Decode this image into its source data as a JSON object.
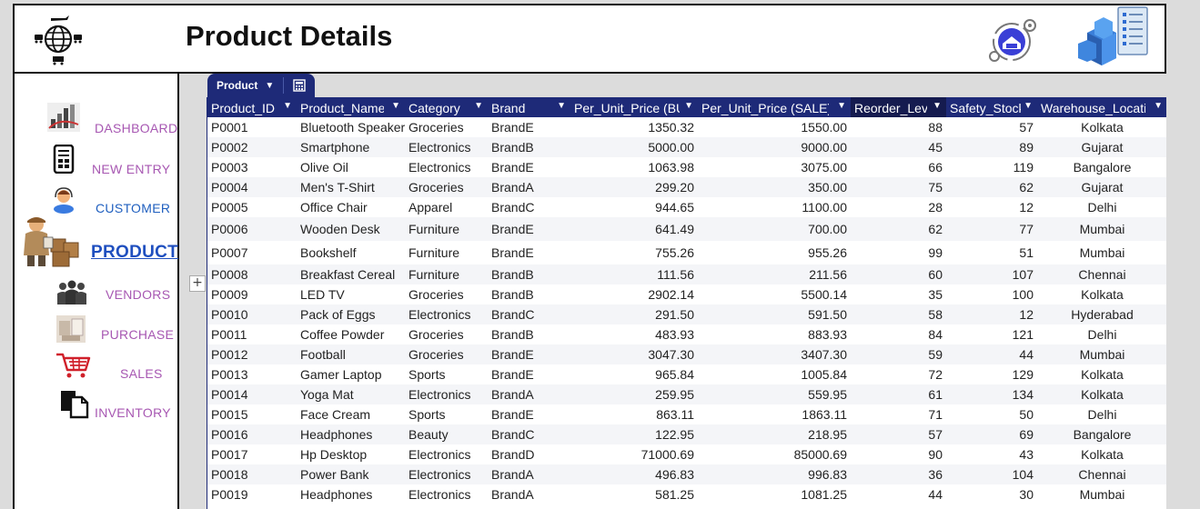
{
  "header": {
    "title": "Product Details"
  },
  "sidebar": {
    "items": [
      {
        "label": "DASHBOARD",
        "icon": "dashboard-icon"
      },
      {
        "label": "NEW ENTRY",
        "icon": "mobile-form-icon"
      },
      {
        "label": "CUSTOMER",
        "icon": "customer-icon"
      },
      {
        "label": "PRODUCT",
        "icon": "product-boxes-icon"
      },
      {
        "label": "VENDORS",
        "icon": "people-icon"
      },
      {
        "label": "PURCHASE",
        "icon": "purchase-icon"
      },
      {
        "label": "SALES",
        "icon": "shopping-cart-icon"
      },
      {
        "label": "INVENTORY",
        "icon": "inventory-docs-icon"
      }
    ]
  },
  "tabs": {
    "table_tab": "Product",
    "chevron": "⌄"
  },
  "table": {
    "columns": [
      "Product_ID",
      "Product_Name",
      "Category",
      "Brand",
      "Per_Unit_Price (BUY)",
      "Per_Unit_Price (SALE)",
      "Reorder_Level",
      "Safety_Stock",
      "Warehouse_Location"
    ],
    "rows": [
      [
        "P0001",
        "Bluetooth Speaker",
        "Groceries",
        "BrandE",
        "1350.32",
        "1550.00",
        "88",
        "57",
        "Kolkata"
      ],
      [
        "P0002",
        "Smartphone",
        "Electronics",
        "BrandB",
        "5000.00",
        "9000.00",
        "45",
        "89",
        "Gujarat"
      ],
      [
        "P0003",
        "Olive Oil",
        "Electronics",
        "BrandE",
        "1063.98",
        "3075.00",
        "66",
        "119",
        "Bangalore"
      ],
      [
        "P0004",
        "Men's T-Shirt",
        "Groceries",
        "BrandA",
        "299.20",
        "350.00",
        "75",
        "62",
        "Gujarat"
      ],
      [
        "P0005",
        "Office Chair",
        "Apparel",
        "BrandC",
        "944.65",
        "1100.00",
        "28",
        "12",
        "Delhi"
      ],
      [
        "P0006",
        "Wooden Desk",
        "Furniture",
        "BrandE",
        "641.49",
        "700.00",
        "62",
        "77",
        "Mumbai"
      ],
      [
        "P0007",
        "Bookshelf",
        "Furniture",
        "BrandE",
        "755.26",
        "955.26",
        "99",
        "51",
        "Mumbai"
      ],
      [
        "P0008",
        "Breakfast Cereal",
        "Furniture",
        "BrandB",
        "111.56",
        "211.56",
        "60",
        "107",
        "Chennai"
      ],
      [
        "P0009",
        "LED TV",
        "Groceries",
        "BrandB",
        "2902.14",
        "5500.14",
        "35",
        "100",
        "Kolkata"
      ],
      [
        "P0010",
        "Pack of Eggs",
        "Electronics",
        "BrandC",
        "291.50",
        "591.50",
        "58",
        "12",
        "Hyderabad"
      ],
      [
        "P0011",
        "Coffee Powder",
        "Groceries",
        "BrandB",
        "483.93",
        "883.93",
        "84",
        "121",
        "Delhi"
      ],
      [
        "P0012",
        "Football",
        "Groceries",
        "BrandE",
        "3047.30",
        "3407.30",
        "59",
        "44",
        "Mumbai"
      ],
      [
        "P0013",
        "Gamer Laptop",
        "Sports",
        "BrandE",
        "965.84",
        "1005.84",
        "72",
        "129",
        "Kolkata"
      ],
      [
        "P0014",
        "Yoga Mat",
        "Electronics",
        "BrandA",
        "259.95",
        "559.95",
        "61",
        "134",
        "Kolkata"
      ],
      [
        "P0015",
        "Face Cream",
        "Sports",
        "BrandE",
        "863.11",
        "1863.11",
        "71",
        "50",
        "Delhi"
      ],
      [
        "P0016",
        "Headphones",
        "Beauty",
        "BrandC",
        "122.95",
        "218.95",
        "57",
        "69",
        "Bangalore"
      ],
      [
        "P0017",
        "Hp Desktop",
        "Electronics",
        "BrandD",
        "71000.69",
        "85000.69",
        "90",
        "43",
        "Kolkata"
      ],
      [
        "P0018",
        "Power Bank",
        "Electronics",
        "BrandA",
        "496.83",
        "996.83",
        "36",
        "104",
        "Chennai"
      ],
      [
        "P0019",
        "Headphones",
        "Electronics",
        "BrandA",
        "581.25",
        "1081.25",
        "44",
        "30",
        "Mumbai"
      ]
    ]
  },
  "expander": "+",
  "colors": {
    "header_bg": "#1e2a78",
    "nav_label": "#a757b2",
    "nav_active": "#1f4fbf"
  }
}
